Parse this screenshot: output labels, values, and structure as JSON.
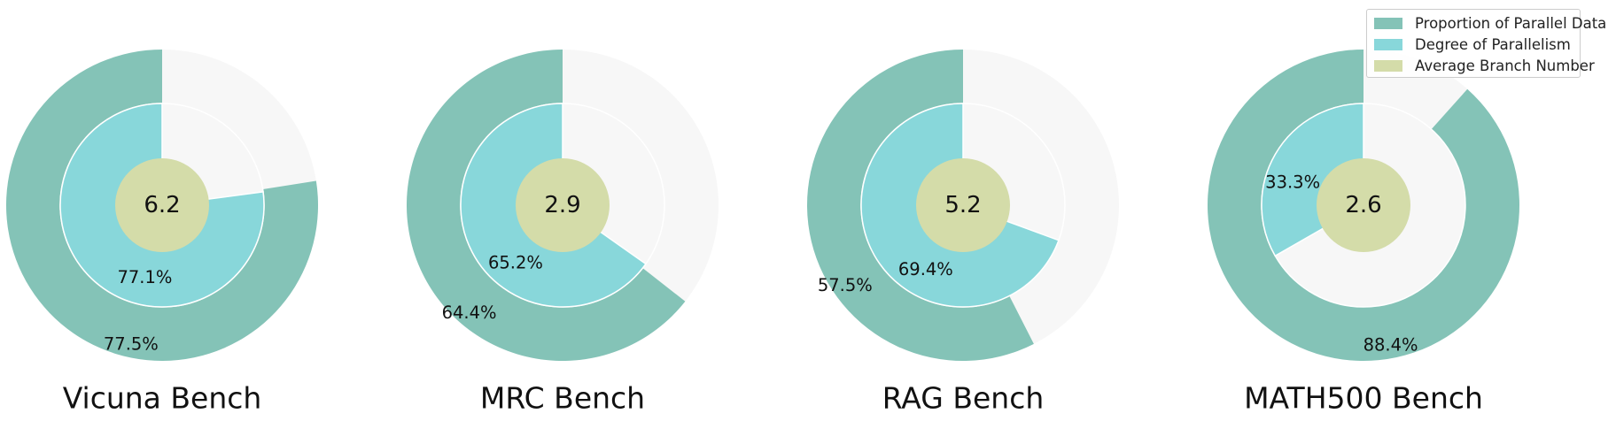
{
  "chart_data": [
    {
      "type": "pie",
      "title": "Vicuna Bench",
      "outer_value": 77.5,
      "outer_label": "77.5%",
      "inner_value": 77.1,
      "inner_label": "77.1%",
      "center_value": 6.2,
      "center_label": "6.2"
    },
    {
      "type": "pie",
      "title": "MRC Bench",
      "outer_value": 64.4,
      "outer_label": "64.4%",
      "inner_value": 65.2,
      "inner_label": "65.2%",
      "center_value": 2.9,
      "center_label": "2.9"
    },
    {
      "type": "pie",
      "title": "RAG Bench",
      "outer_value": 57.5,
      "outer_label": "57.5%",
      "inner_value": 69.4,
      "inner_label": "69.4%",
      "center_value": 5.2,
      "center_label": "5.2"
    },
    {
      "type": "pie",
      "title": "MATH500 Bench",
      "outer_value": 88.4,
      "outer_label": "88.4%",
      "inner_value": 33.3,
      "inner_label": "33.3%",
      "center_value": 2.6,
      "center_label": "2.6"
    }
  ],
  "legend": {
    "placement": "top-right",
    "items": [
      {
        "label": "Proportion of Parallel Data",
        "color": "#84c3b7"
      },
      {
        "label": "Degree of Parallelism",
        "color": "#88d7da"
      },
      {
        "label": "Average Branch Number",
        "color": "#d4dca9"
      }
    ]
  },
  "colors": {
    "outer": "#84c3b7",
    "inner": "#88d7da",
    "center": "#d4dca9",
    "remainder": "#f7f7f7"
  }
}
